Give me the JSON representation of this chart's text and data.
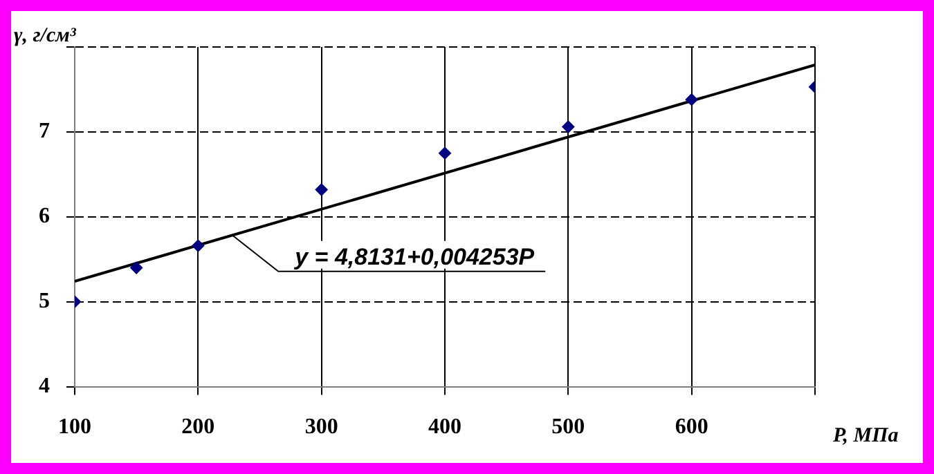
{
  "chart_data": {
    "type": "scatter",
    "xlabel": "P, МПа",
    "ylabel": "γ, г/см³",
    "x": [
      100,
      150,
      200,
      300,
      400,
      500,
      600,
      700
    ],
    "series": [
      {
        "color": "#000080",
        "marker": "diamond",
        "values": [
          5.0,
          5.4,
          5.66,
          6.32,
          6.75,
          7.06,
          7.38,
          7.53
        ]
      },
      {
        "type": "line",
        "color": "#000000",
        "marker": "none",
        "line_style": "solid",
        "x": [
          100,
          700
        ],
        "values": [
          5.24,
          7.79
        ]
      }
    ],
    "xlim": [
      100,
      700
    ],
    "xticks": [
      100,
      200,
      300,
      400,
      500,
      600,
      {
        "value": 700,
        "label": null
      }
    ],
    "ylim": [
      4,
      8
    ],
    "yticks": [
      4,
      5,
      6,
      7,
      {
        "value": 8,
        "label": null
      }
    ],
    "grid": true,
    "legend": false,
    "annotations": [
      {
        "text": "y = 4,8131+0,004253P",
        "x": 228,
        "y": 5.78
      }
    ]
  }
}
